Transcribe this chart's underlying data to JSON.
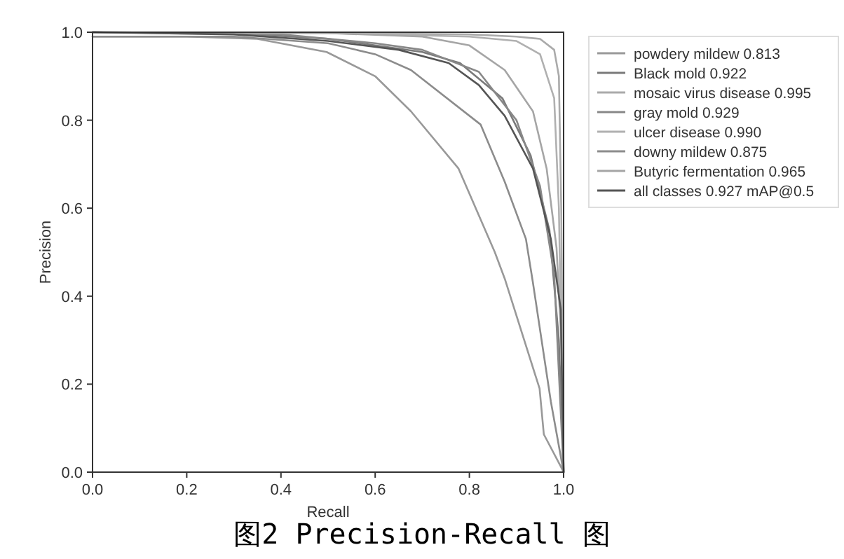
{
  "chart_data": {
    "type": "line",
    "xlabel": "Recall",
    "ylabel": "Precision",
    "xlim": [
      0,
      1
    ],
    "ylim": [
      0,
      1
    ],
    "xticks": [
      {
        "value": 0,
        "label": "0.0"
      },
      {
        "value": 0.2,
        "label": "0.2"
      },
      {
        "value": 0.4,
        "label": "0.4"
      },
      {
        "value": 0.6,
        "label": "0.6"
      },
      {
        "value": 0.8,
        "label": "0.8"
      },
      {
        "value": 1,
        "label": "1.0"
      }
    ],
    "yticks": [
      {
        "value": 0,
        "label": "0.0"
      },
      {
        "value": 0.2,
        "label": "0.2"
      },
      {
        "value": 0.4,
        "label": "0.4"
      },
      {
        "value": 0.6,
        "label": "0.6"
      },
      {
        "value": 0.8,
        "label": "0.8"
      },
      {
        "value": 1,
        "label": "1.0"
      }
    ],
    "legend": "right",
    "line_style": "solid",
    "annotations": [
      "图2  Precision-Recall 图"
    ],
    "series": [
      {
        "name": "powdery mildew 0.813",
        "color": "#999999",
        "x": [
          0,
          0.2,
          0.35,
          0.497,
          0.6,
          0.676,
          0.777,
          0.854,
          0.875,
          0.949,
          0.958,
          0.994,
          1
        ],
        "values": [
          0.99,
          0.99,
          0.985,
          0.955,
          0.9,
          0.82,
          0.69,
          0.5,
          0.44,
          0.19,
          0.086,
          0.013,
          0
        ]
      },
      {
        "name": "Black mold 0.922",
        "color": "#7a7a7a",
        "x": [
          0,
          0.3,
          0.5,
          0.6,
          0.7,
          0.78,
          0.87,
          0.93,
          0.97,
          0.99,
          1
        ],
        "values": [
          1,
          0.998,
          0.985,
          0.97,
          0.955,
          0.93,
          0.85,
          0.72,
          0.55,
          0.3,
          0
        ]
      },
      {
        "name": "mosaic virus disease 0.995",
        "color": "#aaaaaa",
        "x": [
          0,
          0.5,
          0.8,
          0.9,
          0.95,
          0.98,
          0.99,
          0.995,
          1
        ],
        "values": [
          1,
          0.998,
          0.995,
          0.99,
          0.985,
          0.96,
          0.9,
          0.6,
          0
        ]
      },
      {
        "name": "gray mold 0.929",
        "color": "#888888",
        "x": [
          0,
          0.4,
          0.6,
          0.7,
          0.82,
          0.9,
          0.95,
          0.98,
          1
        ],
        "values": [
          1,
          0.995,
          0.975,
          0.96,
          0.91,
          0.8,
          0.65,
          0.45,
          0
        ]
      },
      {
        "name": "ulcer disease 0.990",
        "color": "#b0b0b0",
        "x": [
          0,
          0.5,
          0.8,
          0.9,
          0.95,
          0.98,
          0.99,
          1
        ],
        "values": [
          1,
          0.998,
          0.99,
          0.98,
          0.95,
          0.85,
          0.6,
          0
        ]
      },
      {
        "name": "downy mildew 0.875",
        "color": "#8c8c8c",
        "x": [
          0,
          0.3,
          0.5,
          0.6,
          0.676,
          0.824,
          0.875,
          0.92,
          0.935,
          0.973,
          1
        ],
        "values": [
          0.99,
          0.99,
          0.975,
          0.95,
          0.914,
          0.79,
          0.66,
          0.53,
          0.43,
          0.16,
          0
        ]
      },
      {
        "name": "Butyric fermentation 0.965",
        "color": "#a5a5a5",
        "x": [
          0,
          0.5,
          0.7,
          0.8,
          0.875,
          0.935,
          0.964,
          0.985,
          0.995,
          1
        ],
        "values": [
          1,
          0.998,
          0.99,
          0.97,
          0.914,
          0.82,
          0.69,
          0.51,
          0.3,
          0
        ]
      },
      {
        "name": "all classes 0.927 mAP@0.5",
        "color": "#555555",
        "x": [
          0,
          0.3,
          0.5,
          0.65,
          0.756,
          0.82,
          0.875,
          0.935,
          0.973,
          0.994,
          1
        ],
        "values": [
          1,
          0.995,
          0.98,
          0.96,
          0.93,
          0.88,
          0.81,
          0.69,
          0.53,
          0.37,
          0
        ]
      }
    ]
  }
}
